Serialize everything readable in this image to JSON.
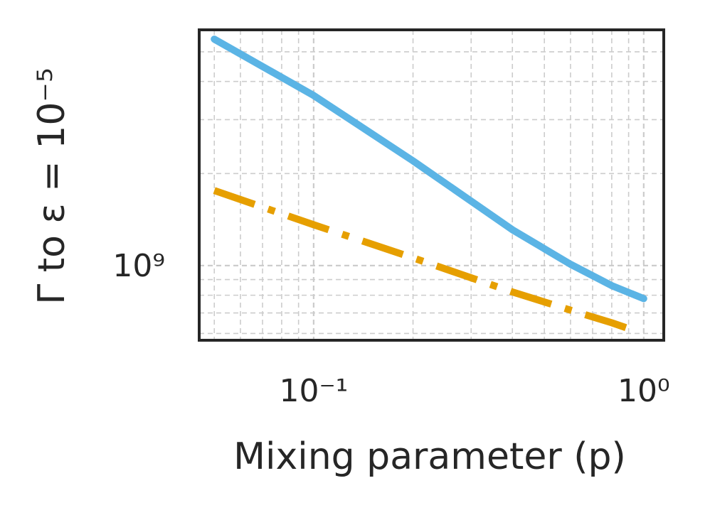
{
  "chart_data": {
    "type": "line",
    "xscale": "log",
    "yscale": "log",
    "xlabel": "Mixing parameter (p)",
    "ylabel": "Γ to ε = 10⁻⁵",
    "xlim": [
      0.045,
      1.15
    ],
    "ylim": [
      570000000,
      5900000000
    ],
    "grid": true,
    "grid_minor": true,
    "xticks": [
      {
        "value": 0.1,
        "label": "10⁻¹"
      },
      {
        "value": 1,
        "label": "10⁰"
      }
    ],
    "yticks": [
      {
        "value": 1000000000,
        "label": "10⁹"
      }
    ],
    "series": [
      {
        "color": "#5bb4e5",
        "style": "solid",
        "x": [
          0.05,
          0.1,
          0.2,
          0.4,
          0.6,
          0.8,
          1.0
        ],
        "y": [
          5500000000,
          3600000000,
          2200000000,
          1310000000,
          1010000000,
          860000000,
          780000000
        ]
      },
      {
        "color": "#e69f00",
        "style": "dashdot",
        "x": [
          0.05,
          0.1,
          0.2,
          0.4,
          0.6,
          0.8,
          0.95
        ],
        "y": [
          1760000000,
          1360000000,
          1060000000,
          820000000,
          715000000,
          650000000,
          610000000
        ]
      }
    ]
  }
}
